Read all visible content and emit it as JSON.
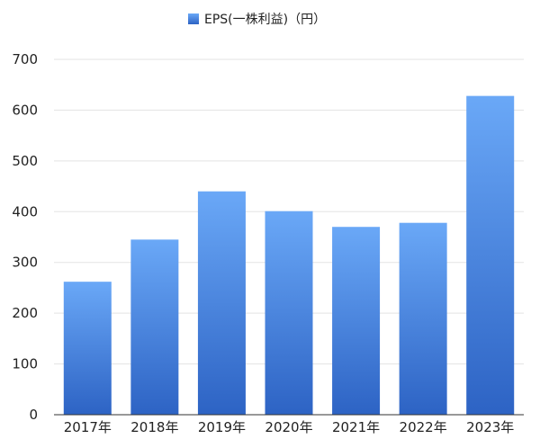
{
  "chart_data": {
    "type": "bar",
    "title": "",
    "xlabel": "",
    "ylabel": "",
    "categories": [
      "2017年",
      "2018年",
      "2019年",
      "2020年",
      "2021年",
      "2022年",
      "2023年"
    ],
    "series": [
      {
        "name": "EPS(一株利益)（円）",
        "values": [
          262,
          345,
          440,
          401,
          370,
          378,
          628
        ]
      }
    ],
    "ylim": [
      0,
      700
    ],
    "yticks": [
      "0",
      "100",
      "200",
      "300",
      "400",
      "500",
      "600",
      "700"
    ],
    "grid": true,
    "legend_position": "top-center",
    "colors": {
      "bar_top": "#6aa8f7",
      "bar_bottom": "#2d63c4",
      "grid": "#e3e3e3",
      "axis": "#333333"
    }
  }
}
